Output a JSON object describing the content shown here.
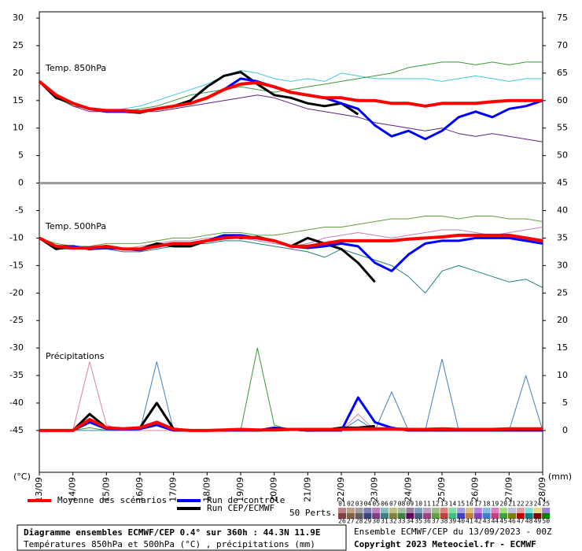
{
  "chart_data": {
    "type": "line",
    "panel_labels": [
      "Temp. 850hPa",
      "Temp. 500hPa",
      "Précipitations"
    ],
    "ylabel": "(°C)",
    "y2label": "(mm)",
    "x": [
      0,
      0.5,
      1,
      1.5,
      2,
      2.5,
      3,
      3.5,
      4,
      4.5,
      5,
      5.5,
      6,
      6.5,
      7,
      7.5,
      8,
      8.5,
      9,
      9.5,
      10,
      10.5,
      11,
      11.5,
      12,
      12.5,
      13,
      13.5,
      14,
      14.5,
      15
    ],
    "xlim": [
      0,
      15
    ],
    "xticks": [
      {
        "value": 0,
        "label": "13/09"
      },
      {
        "value": 1,
        "label": "14/09"
      },
      {
        "value": 2,
        "label": "15/09"
      },
      {
        "value": 3,
        "label": "16/09"
      },
      {
        "value": 4,
        "label": "17/09"
      },
      {
        "value": 5,
        "label": "18/09"
      },
      {
        "value": 6,
        "label": "19/09"
      },
      {
        "value": 7,
        "label": "20/09"
      },
      {
        "value": 8,
        "label": "21/09"
      },
      {
        "value": 9,
        "label": "22/09"
      },
      {
        "value": 10,
        "label": "23/09"
      },
      {
        "value": 11,
        "label": "24/09"
      },
      {
        "value": 12,
        "label": "25/09"
      },
      {
        "value": 13,
        "label": "26/09"
      },
      {
        "value": 14,
        "label": "27/09"
      },
      {
        "value": 15,
        "label": "28/09"
      }
    ],
    "ylim": [
      -52.6,
      31.15
    ],
    "yticks": [
      30,
      25,
      20,
      15,
      10,
      5,
      0,
      -5,
      -10,
      -15,
      -20,
      -25,
      -30,
      -35,
      -40,
      -45
    ],
    "y2lim": [
      -7.6,
      76.15
    ],
    "y2ticks": [
      75,
      70,
      65,
      60,
      55,
      50,
      45,
      40,
      35,
      30,
      25,
      20,
      15,
      10,
      5,
      0
    ],
    "separator": 0,
    "series": [
      {
        "color": "#40c8e0",
        "linewidth": 1,
        "values": [
          18.5,
          16,
          14.5,
          13.5,
          13,
          13.5,
          14,
          15,
          16,
          17,
          18,
          19.5,
          20.5,
          20,
          19,
          18.5,
          19,
          18.5,
          20,
          19.5,
          19,
          19,
          19,
          19,
          18.5,
          19,
          19.5,
          19,
          18.5,
          19,
          19
        ]
      },
      {
        "color": "#3a9a3a",
        "linewidth": 1,
        "values": [
          18.5,
          15.5,
          14,
          13.5,
          13,
          13,
          13.5,
          14,
          15,
          16,
          16.5,
          17,
          17.5,
          17,
          16.5,
          17,
          17.5,
          18,
          18.5,
          19,
          19.5,
          20,
          21,
          21.5,
          22,
          22,
          21.5,
          22,
          21.5,
          22,
          22
        ]
      },
      {
        "color": "#602080",
        "linewidth": 1,
        "values": [
          18.5,
          16,
          14,
          13,
          13,
          13,
          13,
          13,
          13.5,
          14,
          14.5,
          15,
          15.5,
          16,
          15.5,
          14.5,
          13.5,
          13,
          12.5,
          12,
          11,
          10.5,
          10,
          9.5,
          10,
          9,
          8.5,
          9,
          8.5,
          8,
          7.5
        ]
      },
      {
        "color": "#000000",
        "linewidth": 3,
        "values": [
          18.5,
          15.5,
          14.5,
          13.5,
          13,
          13,
          12.8,
          13.5,
          14,
          15,
          17.5,
          19.5,
          20.2,
          18,
          16,
          15.5,
          14.5,
          14,
          14.5,
          12.5,
          null,
          null,
          null,
          null,
          null,
          null,
          null,
          null,
          null,
          null,
          null
        ]
      },
      {
        "color": "#0000ff",
        "linewidth": 3,
        "values": [
          18.5,
          16,
          14.5,
          13.5,
          13,
          13,
          13,
          13.5,
          14,
          14.5,
          15.5,
          17,
          19,
          18.5,
          17.5,
          16.5,
          16,
          15.5,
          14.5,
          13.5,
          10.5,
          8.5,
          9.5,
          8,
          9.5,
          12,
          13,
          12,
          13.5,
          14,
          15
        ]
      },
      {
        "color": "#ff0000",
        "linewidth": 4,
        "values": [
          18.5,
          16,
          14.5,
          13.5,
          13.2,
          13.2,
          13,
          13.5,
          14,
          14.5,
          15.5,
          17,
          18,
          18.3,
          17.5,
          16.5,
          16,
          15.5,
          15.5,
          15,
          15,
          14.5,
          14.5,
          14,
          14.5,
          14.5,
          14.5,
          14.8,
          15,
          15,
          15
        ]
      },
      {
        "color": "#60a040",
        "linewidth": 1,
        "values": [
          -10,
          -11,
          -11.5,
          -11.5,
          -11,
          -11,
          -11,
          -10.5,
          -10,
          -10,
          -9.5,
          -9,
          -9,
          -9.5,
          -9.5,
          -9,
          -8.5,
          -8,
          -8,
          -7.5,
          -7,
          -6.5,
          -6.5,
          -6,
          -6,
          -6.5,
          -6,
          -6,
          -6.5,
          -6.5,
          -7
        ]
      },
      {
        "color": "#208080",
        "linewidth": 1,
        "values": [
          -10,
          -12,
          -12,
          -12,
          -12,
          -12.5,
          -12.5,
          -12,
          -11.5,
          -11,
          -11,
          -10.5,
          -10.5,
          -11,
          -11.5,
          -12,
          -12.5,
          -13.5,
          -12,
          -13,
          -14,
          -15,
          -17,
          -20,
          -16,
          -15,
          -16,
          -17,
          -18,
          -17.5,
          -19
        ]
      },
      {
        "color": "#c080c0",
        "linewidth": 1,
        "values": [
          -10,
          -11.5,
          -12,
          -11.5,
          -12,
          -12,
          -11.5,
          -11,
          -10.5,
          -10.5,
          -10,
          -10,
          -10,
          -10.5,
          -11,
          -11.5,
          -11,
          -10,
          -9.5,
          -9,
          -9.5,
          -10,
          -9.5,
          -9,
          -8.5,
          -8.5,
          -9,
          -9.5,
          -9,
          -8.5,
          -8
        ]
      },
      {
        "color": "#000000",
        "linewidth": 3,
        "values": [
          -10,
          -12,
          -11.5,
          -12,
          -11.5,
          -12,
          -12,
          -11,
          -11.5,
          -11.5,
          -10.5,
          -9.5,
          -10,
          -9.8,
          -10.5,
          -11.5,
          -10,
          -11,
          -12,
          -14.5,
          -18,
          null,
          null,
          null,
          null,
          null,
          null,
          null,
          null,
          null,
          null
        ]
      },
      {
        "color": "#0000ff",
        "linewidth": 3,
        "values": [
          -10,
          -11.5,
          -11.5,
          -12,
          -11.8,
          -12,
          -12.2,
          -11.5,
          -11,
          -11,
          -10.5,
          -9.5,
          -9.5,
          -10,
          -10.5,
          -11.5,
          -11.8,
          -11.5,
          -11,
          -11.5,
          -14.5,
          -16,
          -13,
          -11,
          -10.5,
          -10.5,
          -10,
          -10,
          -10,
          -10.5,
          -11
        ]
      },
      {
        "color": "#ff0000",
        "linewidth": 4,
        "values": [
          -10,
          -11.5,
          -11.8,
          -11.8,
          -11.5,
          -12,
          -12,
          -11.5,
          -11,
          -11,
          -10.5,
          -10,
          -9.8,
          -10,
          -10.5,
          -11.5,
          -11.5,
          -11,
          -10.5,
          -10.5,
          -10.5,
          -10.5,
          -10.2,
          -10,
          -9.8,
          -9.5,
          -9.5,
          -9.5,
          -9.5,
          -10,
          -10.5
        ]
      },
      {
        "color": "#3a9a3a",
        "linewidth": 1,
        "axis": "y2",
        "values": [
          0,
          0,
          0,
          0.5,
          0,
          0,
          0.5,
          1,
          0,
          0,
          0,
          0,
          0,
          15,
          1,
          0,
          0,
          0,
          0,
          0,
          0,
          0,
          0,
          0,
          0,
          0,
          0,
          0,
          0,
          0,
          0
        ]
      },
      {
        "color": "#e080a0",
        "linewidth": 1,
        "axis": "y2",
        "values": [
          0,
          0,
          0,
          12.5,
          1,
          0,
          0,
          0,
          0,
          0,
          0,
          0,
          0,
          0,
          0,
          0,
          0,
          0,
          0,
          3,
          0,
          0,
          0,
          0,
          0,
          0,
          0,
          0,
          0,
          0,
          0
        ]
      },
      {
        "color": "#4080c0",
        "linewidth": 1,
        "axis": "y2",
        "values": [
          0,
          0,
          0,
          0,
          0,
          0,
          0,
          12.5,
          0,
          0,
          0,
          0,
          0,
          0,
          0,
          0,
          0,
          0,
          0,
          2,
          0,
          7,
          0,
          0,
          13,
          0,
          0,
          0,
          0,
          10,
          0
        ]
      },
      {
        "color": "#000000",
        "linewidth": 3,
        "axis": "y2",
        "values": [
          0,
          0,
          0,
          3,
          0.5,
          0.3,
          0.5,
          5,
          0.3,
          0,
          0,
          0,
          0.1,
          0,
          0.1,
          0.2,
          0,
          0.1,
          0.5,
          0.5,
          0.8,
          null,
          null,
          null,
          null,
          null,
          null,
          null,
          null,
          null,
          null
        ]
      },
      {
        "color": "#0000ff",
        "linewidth": 3,
        "axis": "y2",
        "values": [
          0,
          0,
          0,
          1.5,
          0.3,
          0.2,
          0.3,
          1,
          0,
          0,
          0,
          0,
          0,
          0,
          0.5,
          0.2,
          0,
          0,
          0,
          6,
          1.5,
          0.5,
          0,
          0,
          0,
          0,
          0,
          0,
          0,
          0,
          0
        ]
      },
      {
        "color": "#ff0000",
        "linewidth": 4,
        "axis": "y2",
        "values": [
          0,
          0,
          0,
          2,
          0.5,
          0.3,
          0.5,
          1.5,
          0.2,
          0,
          0,
          0.1,
          0.2,
          0.1,
          0.1,
          0.2,
          0.2,
          0.2,
          0.2,
          0.3,
          0.3,
          0.3,
          0.2,
          0.2,
          0.3,
          0.2,
          0.2,
          0.2,
          0.3,
          0.3,
          0.3
        ]
      }
    ],
    "legend": [
      {
        "name": "Moyenne des scénarios",
        "color": "#ff0000"
      },
      {
        "name": "Run de contrôle",
        "color": "#0000ff"
      },
      {
        "name": "Run CEP/ECMWF",
        "color": "#000000"
      }
    ],
    "perts_label": "50 Perts.",
    "perts": [
      {
        "label": "01",
        "color": "#c08080"
      },
      {
        "label": "02",
        "color": "#c0a080"
      },
      {
        "label": "03",
        "color": "#a0a0a0"
      },
      {
        "label": "04",
        "color": "#8080c0"
      },
      {
        "label": "05",
        "color": "#c080c0"
      },
      {
        "label": "06",
        "color": "#80c0c0"
      },
      {
        "label": "07",
        "color": "#c0c080"
      },
      {
        "label": "08",
        "color": "#a0c0a0"
      },
      {
        "label": "09",
        "color": "#a080a0"
      },
      {
        "label": "10",
        "color": "#80a0c0"
      },
      {
        "label": "11",
        "color": "#c0a0c0"
      },
      {
        "label": "12",
        "color": "#a0c080"
      },
      {
        "label": "13",
        "color": "#e08080"
      },
      {
        "label": "14",
        "color": "#80e0a0"
      },
      {
        "label": "15",
        "color": "#a0a0e0"
      },
      {
        "label": "16",
        "color": "#e0c080"
      },
      {
        "label": "17",
        "color": "#c080e0"
      },
      {
        "label": "18",
        "color": "#80c0e0"
      },
      {
        "label": "19",
        "color": "#e080c0"
      },
      {
        "label": "20",
        "color": "#a0e080"
      },
      {
        "label": "21",
        "color": "#c0c0e0"
      },
      {
        "label": "22",
        "color": "#e0a0a0"
      },
      {
        "label": "23",
        "color": "#80e0e0"
      },
      {
        "label": "24",
        "color": "#e0e080"
      },
      {
        "label": "25",
        "color": "#a080e0"
      },
      {
        "label": "26",
        "color": "#804040"
      },
      {
        "label": "27",
        "color": "#806040"
      },
      {
        "label": "28",
        "color": "#606060"
      },
      {
        "label": "29",
        "color": "#404080"
      },
      {
        "label": "30",
        "color": "#804080"
      },
      {
        "label": "31",
        "color": "#408080"
      },
      {
        "label": "32",
        "color": "#808040"
      },
      {
        "label": "33",
        "color": "#408040"
      },
      {
        "label": "34",
        "color": "#600060"
      },
      {
        "label": "35",
        "color": "#406080"
      },
      {
        "label": "36",
        "color": "#a04080"
      },
      {
        "label": "37",
        "color": "#60a040"
      },
      {
        "label": "38",
        "color": "#c04040"
      },
      {
        "label": "39",
        "color": "#40c080"
      },
      {
        "label": "40",
        "color": "#4040c0"
      },
      {
        "label": "41",
        "color": "#c08040"
      },
      {
        "label": "42",
        "color": "#8040c0"
      },
      {
        "label": "43",
        "color": "#4080c0"
      },
      {
        "label": "44",
        "color": "#c04080"
      },
      {
        "label": "45",
        "color": "#40a040"
      },
      {
        "label": "46",
        "color": "#808000"
      },
      {
        "label": "47",
        "color": "#c00000"
      },
      {
        "label": "48",
        "color": "#008080"
      },
      {
        "label": "49",
        "color": "#800000"
      },
      {
        "label": "50",
        "color": "#008000"
      }
    ],
    "footer": {
      "title": "Diagramme ensembles ECMWF/CEP 0.4° sur 360h : 44.3N 11.9E",
      "subtitle": "Températures 850hPa et 500hPa (°C) , précipitations (mm)",
      "run": "Ensemble ECMWF/CEP du 13/09/2023 - 00Z",
      "copyright": "Copyright 2023 Meteociel.fr - ECMWF"
    }
  }
}
